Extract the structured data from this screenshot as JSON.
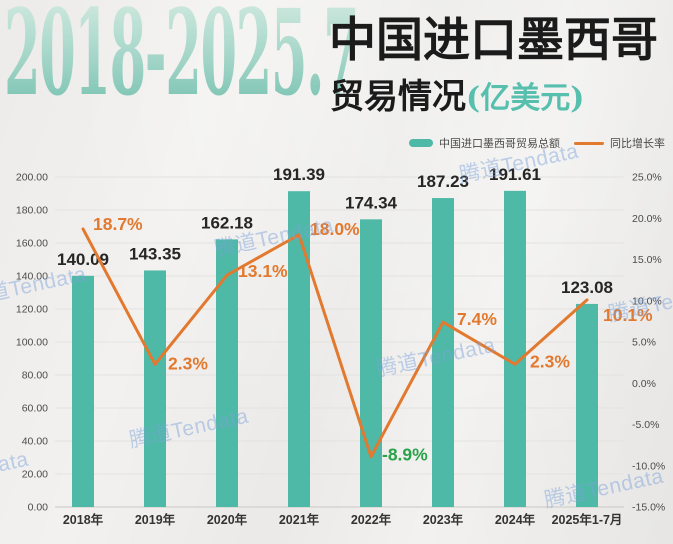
{
  "header": {
    "title_range": "2018-2025.7",
    "title_main": "中国进口墨西哥",
    "title_sub": "贸易情况",
    "title_unit": "(亿美元)"
  },
  "watermark": {
    "text": "腾道Tendata"
  },
  "legend": [
    {
      "label": "中国进口墨西哥贸易总额",
      "type": "bar",
      "color": "#4db9a6"
    },
    {
      "label": "同比增长率",
      "type": "line",
      "color": "#e2792e"
    }
  ],
  "chart_data": {
    "type": "bar",
    "combo": "bar+line dual-axis",
    "title": "2018-2025.7 中国进口墨西哥贸易情况(亿美元)",
    "categories": [
      "2018年",
      "2019年",
      "2020年",
      "2021年",
      "2022年",
      "2023年",
      "2024年",
      "2025年1-7月"
    ],
    "series": [
      {
        "name": "中国进口墨西哥贸易总额",
        "chart": "bar",
        "axis": "left",
        "color": "#4db9a6",
        "values": [
          140.09,
          143.35,
          162.18,
          191.39,
          174.34,
          187.23,
          191.61,
          123.08
        ],
        "labels": [
          "140.09",
          "143.35",
          "162.18",
          "191.39",
          "174.34",
          "187.23",
          "191.61",
          "123.08"
        ]
      },
      {
        "name": "同比增长率",
        "chart": "line",
        "axis": "right",
        "color": "#e2792e",
        "values": [
          18.7,
          2.3,
          13.1,
          18.0,
          -8.9,
          7.4,
          2.3,
          10.1
        ],
        "labels": [
          "18.7%",
          "2.3%",
          "13.1%",
          "18.0%",
          "-8.9%",
          "7.4%",
          "2.3%",
          "10.1%"
        ],
        "label_colors": [
          "#e2792e",
          "#e2792e",
          "#e2792e",
          "#e2792e",
          "#2aa24a",
          "#e2792e",
          "#e2792e",
          "#e2792e"
        ]
      }
    ],
    "left_axis": {
      "min": 0,
      "max": 200,
      "step": 20,
      "tick_labels": [
        "200.00",
        "180.00",
        "160.00",
        "140.00",
        "120.00",
        "100.00",
        "80.00",
        "60.00",
        "40.00",
        "20.00",
        "0.00"
      ]
    },
    "right_axis": {
      "min": -15,
      "max": 25,
      "step": 5,
      "tick_labels": [
        "25.0%",
        "20.0%",
        "15.0%",
        "10.0%",
        "5.0%",
        "0.0%",
        "-5.0%",
        "-10.0%",
        "-15.0%"
      ]
    },
    "grid": true,
    "legend_position": "top-right"
  }
}
